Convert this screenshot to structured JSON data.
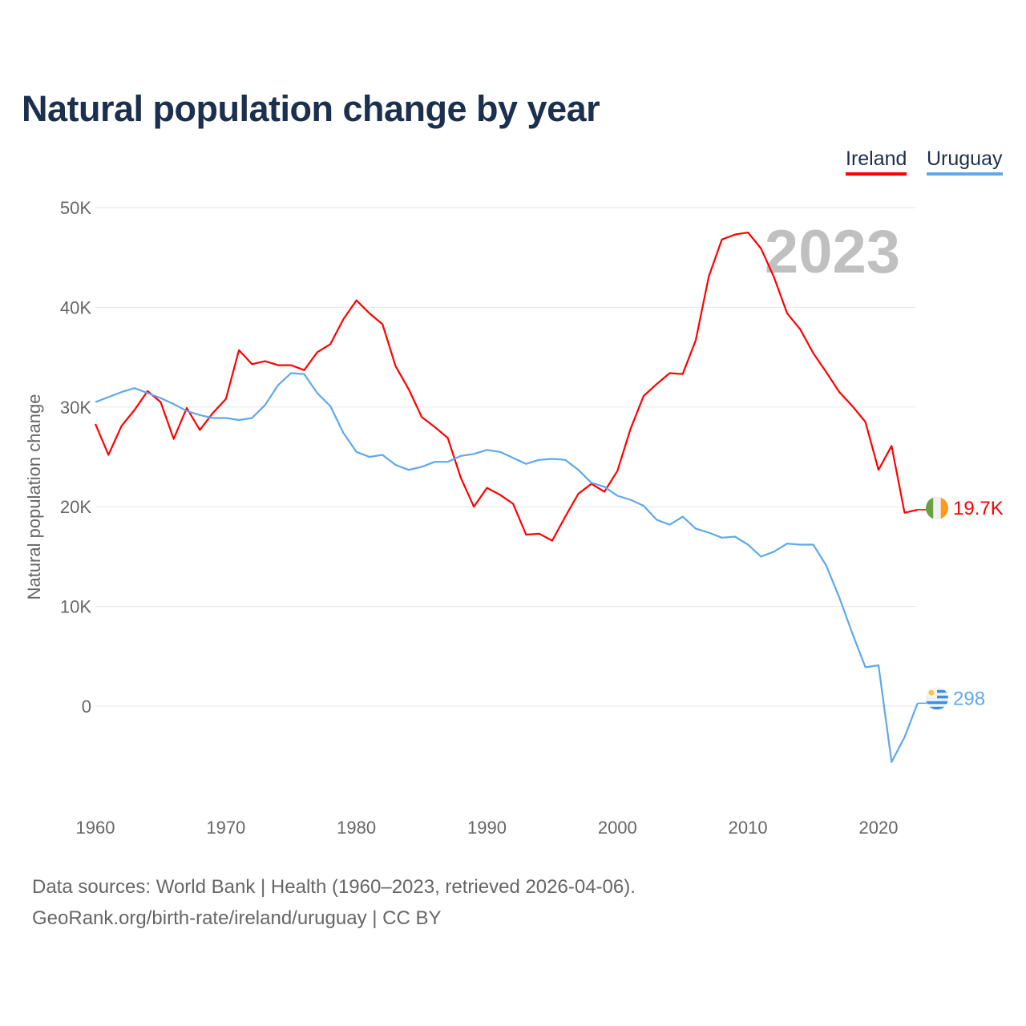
{
  "title": "Natural population change by year",
  "legend": [
    "Ireland",
    "Uruguay"
  ],
  "footer": {
    "line1": "Data sources: World Bank | Health (1960–2023, retrieved 2026-04-06).",
    "line2": "GeoRank.org/birth-rate/ireland/uruguay | CC BY"
  },
  "watermark_year": "2023",
  "colors": {
    "ireland": "#ff0000",
    "uruguay": "#5ea8ec"
  },
  "chart_data": {
    "type": "line",
    "title": "Natural population change by year",
    "xlabel": "",
    "ylabel": "Natural population change",
    "xlim": [
      1960,
      2023
    ],
    "ylim": [
      -10000,
      50000
    ],
    "yticks": [
      0,
      10000,
      20000,
      30000,
      40000,
      50000
    ],
    "ytick_labels": [
      "0",
      "10K",
      "20K",
      "30K",
      "40K",
      "50K"
    ],
    "xticks": [
      1960,
      1970,
      1980,
      1990,
      2000,
      2010,
      2020
    ],
    "xtick_labels": [
      "1960",
      "1970",
      "1980",
      "1990",
      "2000",
      "2010",
      "2020"
    ],
    "grid": true,
    "legend_position": "top-right",
    "x": [
      1960,
      1961,
      1962,
      1963,
      1964,
      1965,
      1966,
      1967,
      1968,
      1969,
      1970,
      1971,
      1972,
      1973,
      1974,
      1975,
      1976,
      1977,
      1978,
      1979,
      1980,
      1981,
      1982,
      1983,
      1984,
      1985,
      1986,
      1987,
      1988,
      1989,
      1990,
      1991,
      1992,
      1993,
      1994,
      1995,
      1996,
      1997,
      1998,
      1999,
      2000,
      2001,
      2002,
      2003,
      2004,
      2005,
      2006,
      2007,
      2008,
      2009,
      2010,
      2011,
      2012,
      2013,
      2014,
      2015,
      2016,
      2017,
      2018,
      2019,
      2020,
      2021,
      2022,
      2023
    ],
    "series": [
      {
        "name": "Ireland",
        "end_label": "19.7K",
        "values": [
          28300,
          25200,
          28100,
          29700,
          31600,
          30500,
          26800,
          29900,
          27700,
          29400,
          30800,
          35700,
          34300,
          34600,
          34200,
          34200,
          33700,
          35500,
          36300,
          38800,
          40700,
          39400,
          38300,
          34100,
          31800,
          29000,
          28000,
          26900,
          22900,
          20000,
          21900,
          21200,
          20300,
          17200,
          17300,
          16600,
          19000,
          21300,
          22300,
          21500,
          23600,
          27800,
          31100,
          32300,
          33400,
          33300,
          36700,
          43100,
          46800,
          47300,
          47500,
          45900,
          43000,
          39400,
          37800,
          35400,
          33500,
          31500,
          30100,
          28500,
          23700,
          26100,
          19400,
          19700
        ]
      },
      {
        "name": "Uruguay",
        "end_label": "298",
        "values": [
          30500,
          31000,
          31500,
          31900,
          31400,
          30900,
          30300,
          29600,
          29200,
          28900,
          28900,
          28700,
          28900,
          30200,
          32200,
          33400,
          33300,
          31400,
          30100,
          27400,
          25500,
          25000,
          25200,
          24200,
          23700,
          24000,
          24500,
          24500,
          25100,
          25300,
          25700,
          25500,
          24900,
          24300,
          24700,
          24800,
          24700,
          23700,
          22400,
          22000,
          21100,
          20700,
          20100,
          18700,
          18200,
          19000,
          17800,
          17400,
          16900,
          17000,
          16200,
          15000,
          15500,
          16300,
          16200,
          16200,
          14100,
          10900,
          7300,
          3900,
          4100,
          -5600,
          -3100,
          298
        ]
      }
    ]
  }
}
